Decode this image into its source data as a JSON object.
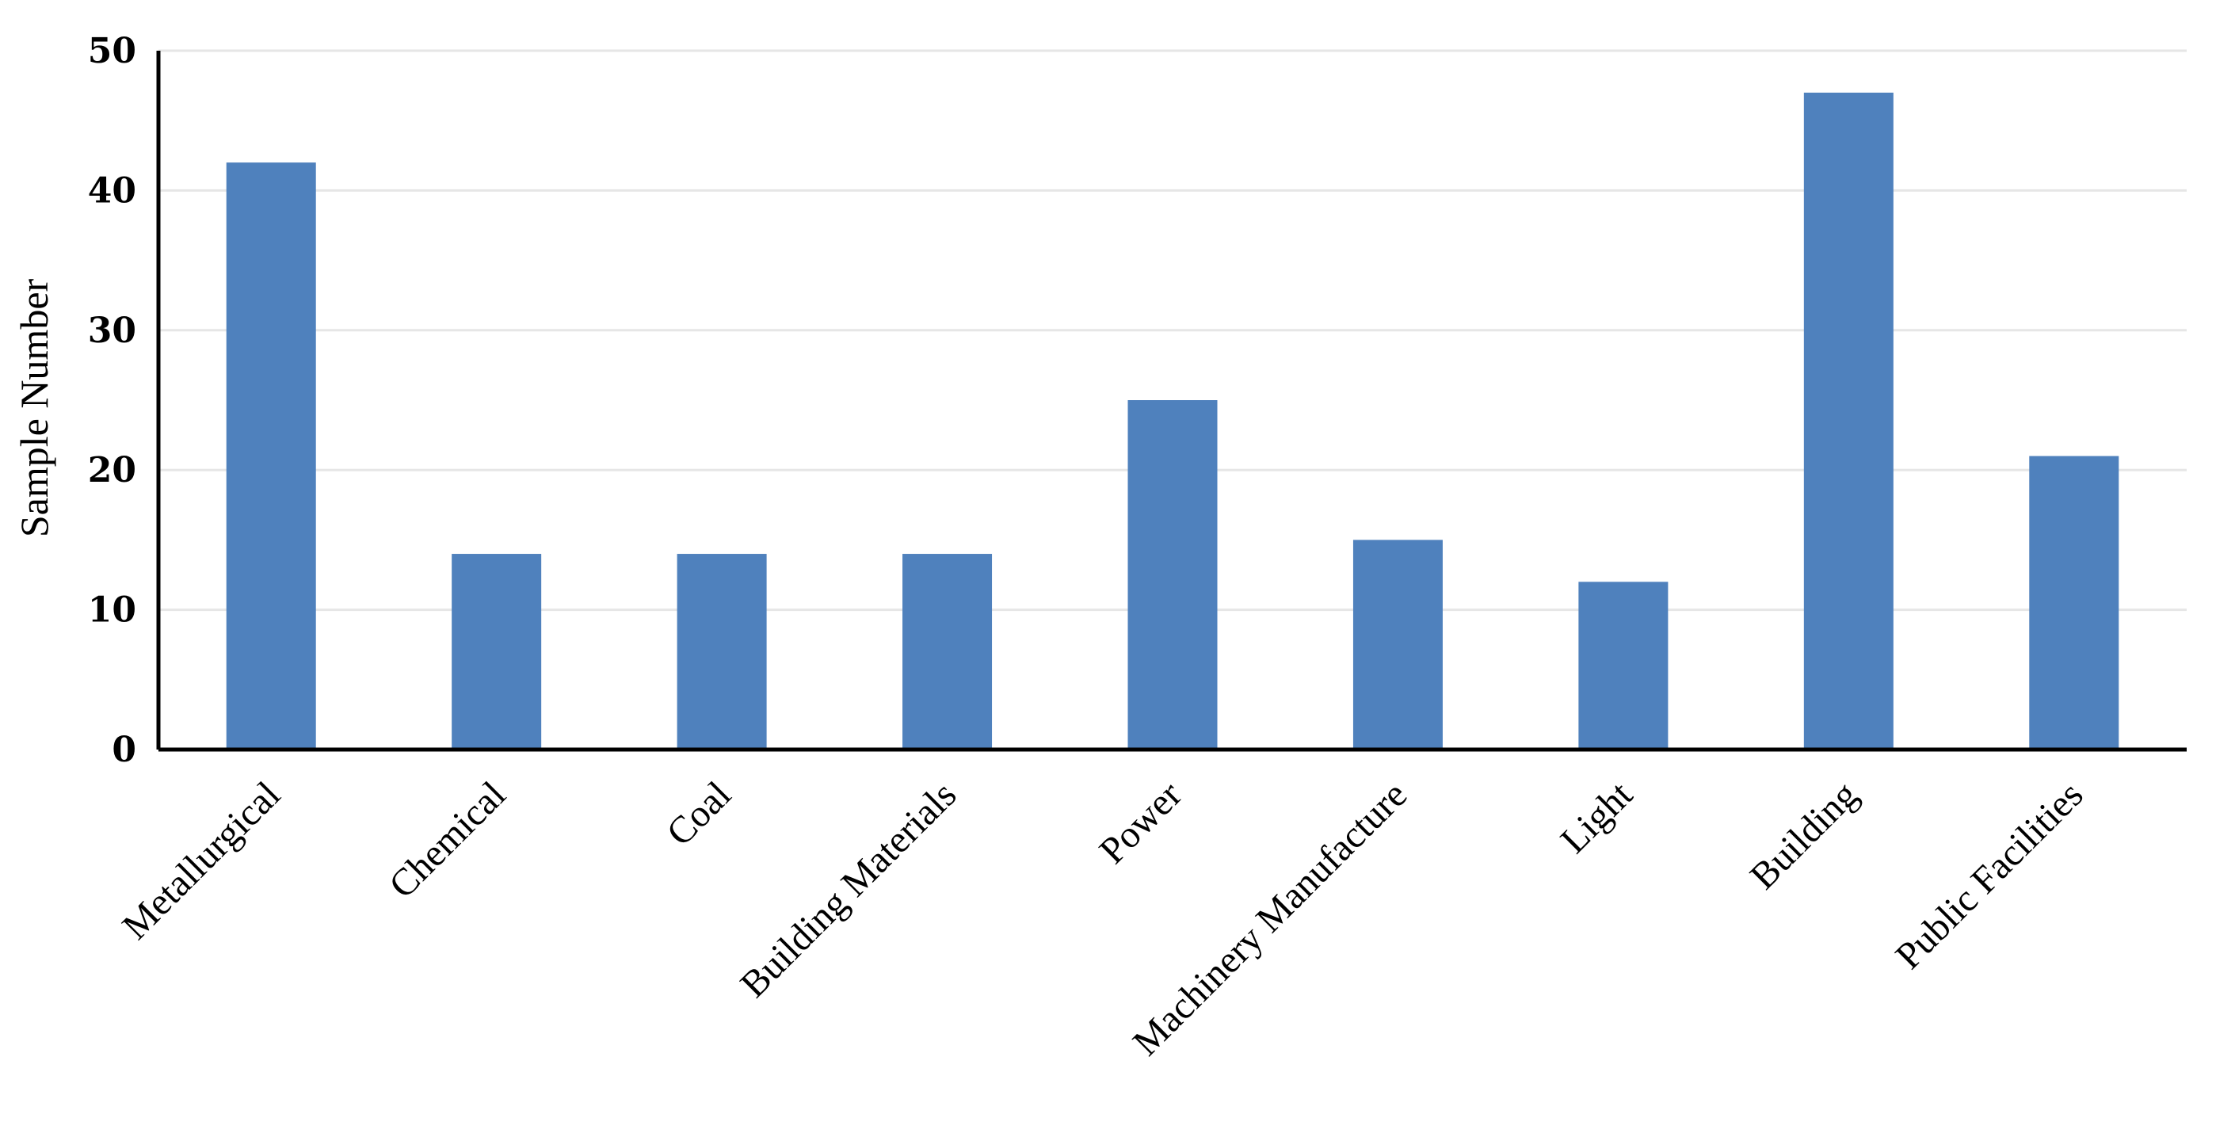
{
  "chart_data": {
    "type": "bar",
    "categories": [
      "Metallurgical",
      "Chemical",
      "Coal",
      "Building Materials",
      "Power",
      "Machinery Manufacture",
      "Light",
      "Building",
      "Public Facilities"
    ],
    "values": [
      42,
      14,
      14,
      14,
      25,
      15,
      12,
      47,
      21
    ],
    "title": "",
    "xlabel": "",
    "ylabel": "Sample Number",
    "ylim": [
      0,
      50
    ],
    "yticks": [
      0,
      10,
      20,
      30,
      40,
      50
    ],
    "grid": true,
    "legend": "none",
    "bar_color": "#4f81bd",
    "grid_color": "#e6e6e6",
    "axis_color": "#000000"
  }
}
